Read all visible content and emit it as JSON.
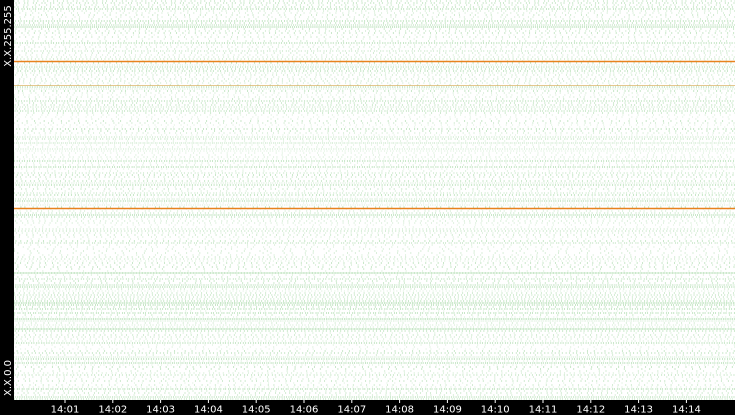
{
  "axis": {
    "y_labels": [
      "X.X.255.255",
      "X.X.0.0"
    ],
    "x_labels": [
      "14:01",
      "14:02",
      "14:03",
      "14:04",
      "14:05",
      "14:06",
      "14:07",
      "14:08",
      "14:09",
      "14:10",
      "14:11",
      "14:12",
      "14:13",
      "14:14"
    ]
  }
}
